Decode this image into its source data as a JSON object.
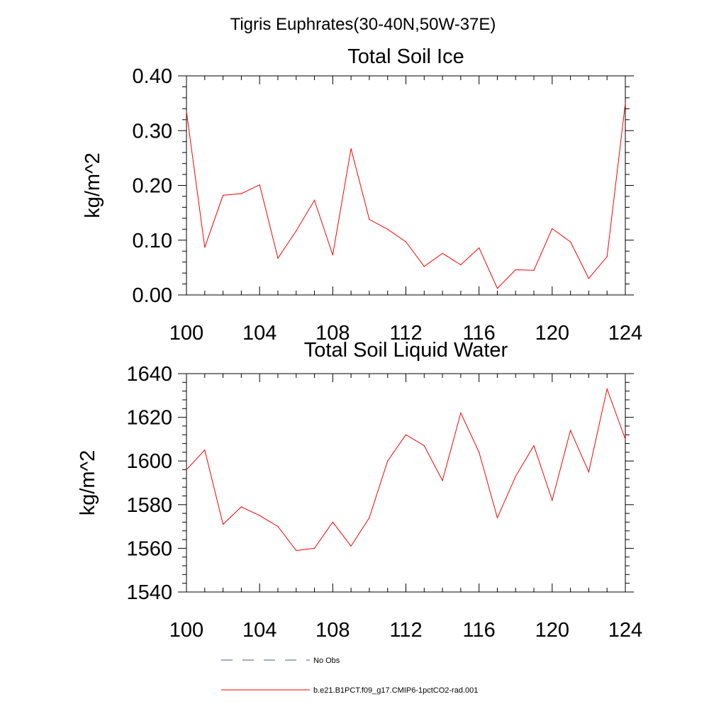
{
  "figure": {
    "title": "Tigris Euphrates(30-40N,50W-37E)"
  },
  "chart_data": [
    {
      "type": "line",
      "title": "Total Soil Ice",
      "xlabel": "",
      "ylabel": "kg/m^2",
      "xlim": [
        100,
        124
      ],
      "ylim": [
        0,
        0.4
      ],
      "xticks": [
        "100",
        "104",
        "108",
        "112",
        "116",
        "120",
        "124"
      ],
      "yticks": [
        "0.00",
        "0.10",
        "0.20",
        "0.30",
        "0.40"
      ],
      "x": [
        100,
        101,
        102,
        103,
        104,
        105,
        106,
        107,
        108,
        109,
        110,
        111,
        112,
        113,
        114,
        115,
        116,
        117,
        118,
        119,
        120,
        121,
        122,
        123,
        124
      ],
      "series": [
        {
          "name": "b.e21.B1PCT.f09_g17.CMIP6-1pctCO2-rad.001",
          "color": "#ff0000",
          "values": [
            0.335,
            0.087,
            0.182,
            0.185,
            0.201,
            0.067,
            0.117,
            0.173,
            0.073,
            0.267,
            0.138,
            0.12,
            0.097,
            0.052,
            0.076,
            0.055,
            0.086,
            0.012,
            0.046,
            0.045,
            0.121,
            0.097,
            0.03,
            0.07,
            0.35
          ]
        }
      ]
    },
    {
      "type": "line",
      "title": "Total Soil Liquid Water",
      "xlabel": "",
      "ylabel": "kg/m^2",
      "xlim": [
        100,
        124
      ],
      "ylim": [
        1540,
        1640
      ],
      "xticks": [
        "100",
        "104",
        "108",
        "112",
        "116",
        "120",
        "124"
      ],
      "yticks": [
        "1540",
        "1560",
        "1580",
        "1600",
        "1620",
        "1640"
      ],
      "x": [
        100,
        101,
        102,
        103,
        104,
        105,
        106,
        107,
        108,
        109,
        110,
        111,
        112,
        113,
        114,
        115,
        116,
        117,
        118,
        119,
        120,
        121,
        122,
        123,
        124
      ],
      "series": [
        {
          "name": "b.e21.B1PCT.f09_g17.CMIP6-1pctCO2-rad.001",
          "color": "#ff0000",
          "values": [
            1596,
            1605,
            1571,
            1579,
            1575,
            1570,
            1559,
            1560,
            1572,
            1561,
            1574,
            1600,
            1612,
            1607,
            1591,
            1622,
            1604,
            1574,
            1593,
            1607,
            1582,
            1614,
            1595,
            1633,
            1610
          ]
        }
      ]
    }
  ],
  "legend": [
    {
      "label": "No Obs",
      "style": "dashed",
      "color": "#4a5a8a"
    },
    {
      "label": "b.e21.B1PCT.f09_g17.CMIP6-1pctCO2-rad.001",
      "style": "solid",
      "color": "#ff0000"
    }
  ]
}
